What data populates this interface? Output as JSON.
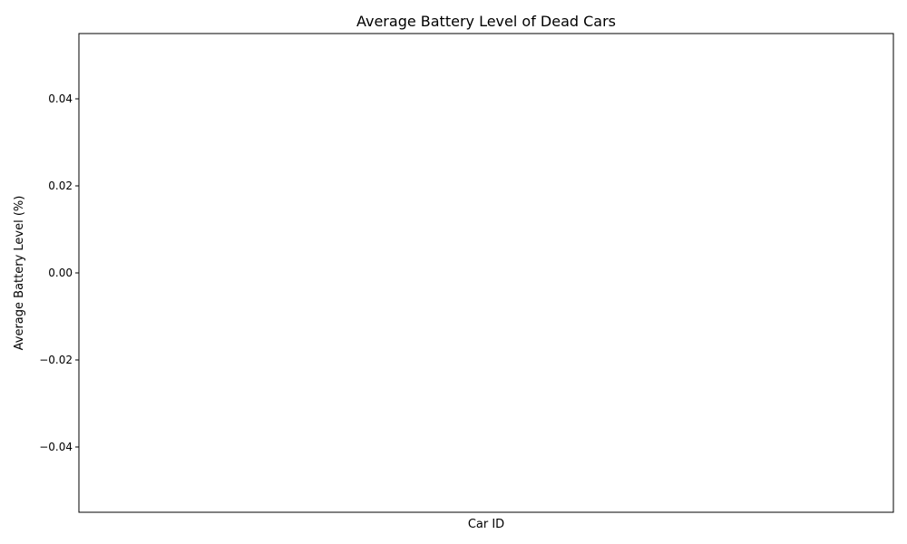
{
  "chart_data": {
    "type": "bar",
    "title": "Average Battery Level of Dead Cars",
    "xlabel": "Car ID",
    "ylabel": "Average Battery Level (%)",
    "categories": [],
    "values": [],
    "ylim": [
      -0.055,
      0.055
    ],
    "yticks": [
      -0.04,
      -0.02,
      0.0,
      0.02,
      0.04
    ],
    "ytick_labels": [
      "−0.04",
      "−0.02",
      "0.00",
      "0.02",
      "0.04"
    ],
    "grid": false,
    "legend": "none"
  }
}
